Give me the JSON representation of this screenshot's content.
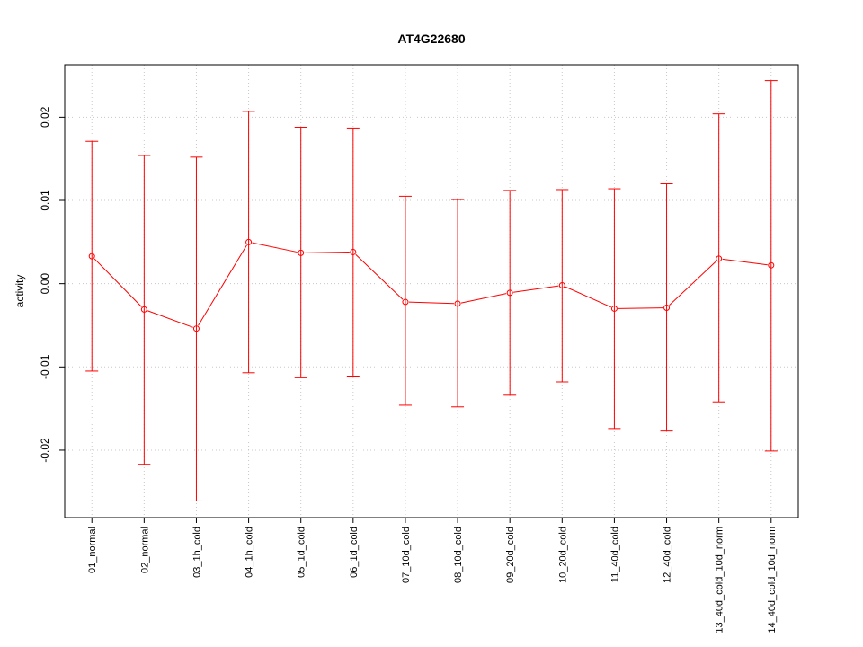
{
  "chart_data": {
    "type": "line",
    "title": "AT4G22680",
    "xlabel": "",
    "ylabel": "activity",
    "categories": [
      "01_normal",
      "02_normal",
      "03_1h_cold",
      "04_1h_cold",
      "05_1d_cold",
      "06_1d_cold",
      "07_10d_cold",
      "08_10d_cold",
      "09_20d_cold",
      "10_20d_cold",
      "11_40d_cold",
      "12_40d_cold",
      "13_40d_cold_10d_norm",
      "14_40d_cold_10d_norm"
    ],
    "series": [
      {
        "name": "activity",
        "values": [
          0.0033,
          -0.0031,
          -0.0054,
          0.005,
          0.0037,
          0.0038,
          -0.0022,
          -0.0024,
          -0.0011,
          -0.0002,
          -0.003,
          -0.0029,
          0.003,
          0.0022
        ],
        "upper": [
          0.0171,
          0.0154,
          0.0152,
          0.0207,
          0.0188,
          0.0187,
          0.0105,
          0.0101,
          0.0112,
          0.0113,
          0.0114,
          0.012,
          0.0204,
          0.0244
        ],
        "lower": [
          -0.0105,
          -0.0217,
          -0.0261,
          -0.0107,
          -0.0113,
          -0.0111,
          -0.0146,
          -0.0148,
          -0.0134,
          -0.0118,
          -0.0174,
          -0.0177,
          -0.0142,
          -0.0201
        ],
        "color": "#ff0000"
      }
    ],
    "yticks": [
      -0.02,
      -0.01,
      0.0,
      0.01,
      0.02
    ],
    "ytick_labels": [
      "-0.02",
      "-0.01",
      "0.00",
      "0.01",
      "0.02"
    ],
    "ylim": [
      -0.0281,
      0.0263
    ],
    "xlim": [
      0.48,
      14.52
    ],
    "grid": true,
    "legend": "none"
  }
}
